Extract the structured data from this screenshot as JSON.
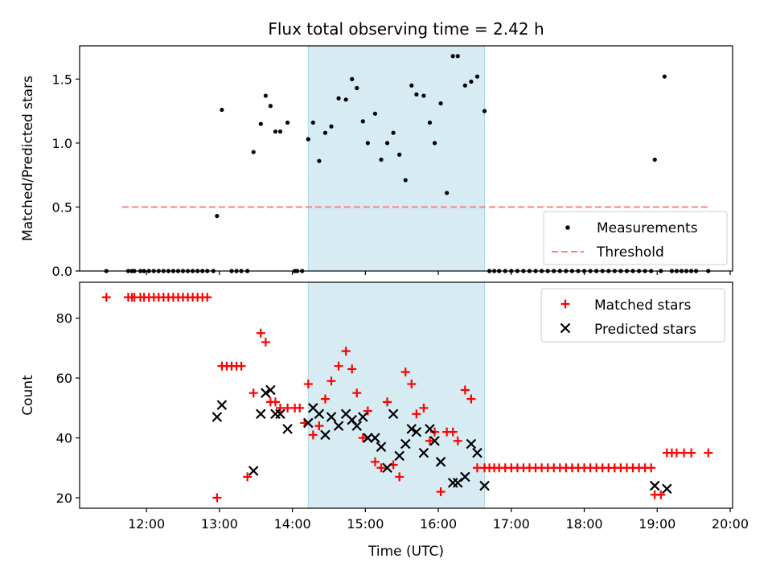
{
  "chart_data": [
    {
      "type": "scatter",
      "title": "Flux total observing time = 2.42 h",
      "xlabel": "",
      "ylabel": "Matched/Predicted stars",
      "xlim": [
        "11:05",
        "20:02"
      ],
      "ylim": [
        0,
        1.76
      ],
      "yticks": [
        "0.0",
        "0.5",
        "1.0",
        "1.5"
      ],
      "x_tick_labels_shown": false,
      "grid": false,
      "legend_position": "bottom-right",
      "shaded_interval": {
        "start": "14:13",
        "end": "16:38",
        "color": "#add8e6"
      },
      "series": [
        {
          "name": "Measurements",
          "marker": "dot",
          "color": "#000000",
          "x": [
            "11:27",
            "11:45",
            "11:48",
            "11:50",
            "11:55",
            "11:58",
            "12:02",
            "12:06",
            "12:10",
            "12:14",
            "12:18",
            "12:22",
            "12:26",
            "12:30",
            "12:34",
            "12:38",
            "12:42",
            "12:46",
            "12:50",
            "12:55",
            "12:58",
            "13:02",
            "13:10",
            "13:14",
            "13:18",
            "13:23",
            "13:28",
            "13:34",
            "13:38",
            "13:42",
            "13:46",
            "13:50",
            "13:56",
            "14:02",
            "14:04",
            "14:08",
            "14:13",
            "14:17",
            "14:22",
            "14:27",
            "14:32",
            "14:38",
            "14:44",
            "14:49",
            "14:53",
            "14:58",
            "15:02",
            "15:08",
            "15:13",
            "15:18",
            "15:23",
            "15:28",
            "15:33",
            "15:38",
            "15:42",
            "15:48",
            "15:53",
            "15:57",
            "16:02",
            "16:07",
            "16:12",
            "16:16",
            "16:22",
            "16:27",
            "16:32",
            "16:38",
            "16:42",
            "16:46",
            "16:50",
            "16:55",
            "17:00",
            "17:05",
            "17:10",
            "17:15",
            "17:20",
            "17:25",
            "17:30",
            "17:35",
            "17:40",
            "17:45",
            "17:50",
            "17:55",
            "18:00",
            "18:05",
            "18:10",
            "18:15",
            "18:20",
            "18:25",
            "18:30",
            "18:35",
            "18:40",
            "18:45",
            "18:50",
            "18:55",
            "18:58",
            "19:03",
            "19:06",
            "19:12",
            "19:16",
            "19:20",
            "19:24",
            "19:28",
            "19:32",
            "19:42"
          ],
          "y": [
            0,
            0,
            0,
            0,
            0,
            0,
            0,
            0,
            0,
            0,
            0,
            0,
            0,
            0,
            0,
            0,
            0,
            0,
            0,
            0,
            0.43,
            1.26,
            0,
            0,
            0,
            0,
            0.93,
            1.15,
            1.37,
            1.29,
            1.09,
            1.09,
            1.16,
            0,
            0,
            0,
            1.03,
            1.16,
            0.86,
            1.08,
            1.13,
            1.35,
            1.34,
            1.5,
            1.43,
            1.17,
            1.0,
            1.23,
            0.87,
            1.0,
            1.08,
            0.91,
            0.71,
            1.45,
            1.38,
            1.37,
            1.16,
            1.0,
            1.31,
            0.61,
            1.68,
            1.68,
            1.45,
            1.48,
            1.52,
            1.25,
            0,
            0,
            0,
            0,
            0,
            0,
            0,
            0,
            0,
            0,
            0,
            0,
            0,
            0,
            0,
            0,
            0,
            0,
            0,
            0,
            0,
            0,
            0,
            0,
            0,
            0,
            0,
            0,
            0.87,
            0,
            1.52,
            0,
            0,
            0,
            0,
            0,
            0,
            0
          ]
        },
        {
          "name": "Threshold",
          "line": "dashed",
          "color": "#ff8080",
          "x": [
            "11:40",
            "19:42"
          ],
          "y": [
            0.5,
            0.5
          ]
        }
      ]
    },
    {
      "type": "scatter",
      "title": "",
      "xlabel": "Time (UTC)",
      "ylabel": "Count",
      "xlim": [
        "11:05",
        "20:02"
      ],
      "ylim": [
        16.5,
        92
      ],
      "yticks": [
        "20",
        "40",
        "60",
        "80"
      ],
      "xticks": [
        "12:00",
        "13:00",
        "14:00",
        "15:00",
        "16:00",
        "17:00",
        "18:00",
        "19:00",
        "20:00"
      ],
      "grid": false,
      "legend_position": "top-right",
      "shaded_interval": {
        "start": "14:13",
        "end": "16:38",
        "color": "#add8e6"
      },
      "series": [
        {
          "name": "Matched stars",
          "marker": "plus",
          "color": "#ff0000",
          "x": [
            "11:27",
            "11:45",
            "11:48",
            "11:50",
            "11:55",
            "11:58",
            "12:02",
            "12:06",
            "12:10",
            "12:14",
            "12:18",
            "12:22",
            "12:26",
            "12:30",
            "12:34",
            "12:38",
            "12:42",
            "12:46",
            "12:50",
            "12:58",
            "13:02",
            "13:06",
            "13:10",
            "13:14",
            "13:18",
            "13:23",
            "13:28",
            "13:34",
            "13:38",
            "13:42",
            "13:46",
            "13:50",
            "13:56",
            "14:02",
            "14:06",
            "14:10",
            "14:13",
            "14:17",
            "14:22",
            "14:27",
            "14:32",
            "14:38",
            "14:44",
            "14:49",
            "14:53",
            "14:58",
            "15:02",
            "15:08",
            "15:13",
            "15:18",
            "15:23",
            "15:28",
            "15:33",
            "15:38",
            "15:42",
            "15:48",
            "15:53",
            "15:57",
            "16:02",
            "16:07",
            "16:12",
            "16:16",
            "16:22",
            "16:27",
            "16:32",
            "16:38",
            "16:42",
            "16:46",
            "16:50",
            "16:55",
            "17:00",
            "17:05",
            "17:10",
            "17:15",
            "17:20",
            "17:25",
            "17:30",
            "17:35",
            "17:40",
            "17:45",
            "17:50",
            "17:55",
            "18:00",
            "18:05",
            "18:10",
            "18:15",
            "18:20",
            "18:25",
            "18:30",
            "18:35",
            "18:40",
            "18:45",
            "18:50",
            "18:55",
            "18:58",
            "19:03",
            "19:08",
            "19:12",
            "19:16",
            "19:22",
            "19:28",
            "19:42"
          ],
          "y": [
            87,
            87,
            87,
            87,
            87,
            87,
            87,
            87,
            87,
            87,
            87,
            87,
            87,
            87,
            87,
            87,
            87,
            87,
            87,
            20,
            64,
            64,
            64,
            64,
            64,
            27,
            55,
            75,
            72,
            52,
            52,
            50,
            50,
            50,
            50,
            45,
            58,
            41,
            44,
            53,
            59,
            64,
            69,
            63,
            55,
            40,
            49,
            32,
            30,
            52,
            31,
            27,
            62,
            58,
            48,
            50,
            39,
            42,
            22,
            42,
            42,
            39,
            56,
            53,
            30,
            30,
            30,
            30,
            30,
            30,
            30,
            30,
            30,
            30,
            30,
            30,
            30,
            30,
            30,
            30,
            30,
            30,
            30,
            30,
            30,
            30,
            30,
            30,
            30,
            30,
            30,
            30,
            30,
            30,
            21,
            21,
            35,
            35,
            35,
            35,
            35,
            35
          ]
        },
        {
          "name": "Predicted stars",
          "marker": "x",
          "color": "#000000",
          "x": [
            "12:58",
            "13:02",
            "13:28",
            "13:34",
            "13:38",
            "13:42",
            "13:46",
            "13:50",
            "13:56",
            "14:13",
            "14:17",
            "14:22",
            "14:27",
            "14:32",
            "14:38",
            "14:44",
            "14:49",
            "14:53",
            "14:58",
            "15:02",
            "15:08",
            "15:13",
            "15:18",
            "15:23",
            "15:28",
            "15:33",
            "15:38",
            "15:42",
            "15:48",
            "15:53",
            "15:57",
            "16:02",
            "16:12",
            "16:16",
            "16:22",
            "16:27",
            "16:32",
            "16:38",
            "18:58",
            "19:08"
          ],
          "y": [
            47,
            51,
            29,
            48,
            55,
            56,
            48,
            48,
            43,
            45,
            50,
            48,
            41,
            47,
            44,
            48,
            46,
            44,
            47,
            40,
            40,
            37,
            30,
            48,
            34,
            38,
            43,
            42,
            35,
            43,
            39,
            32,
            25,
            25,
            27,
            38,
            35,
            24,
            24,
            23
          ]
        }
      ]
    }
  ]
}
